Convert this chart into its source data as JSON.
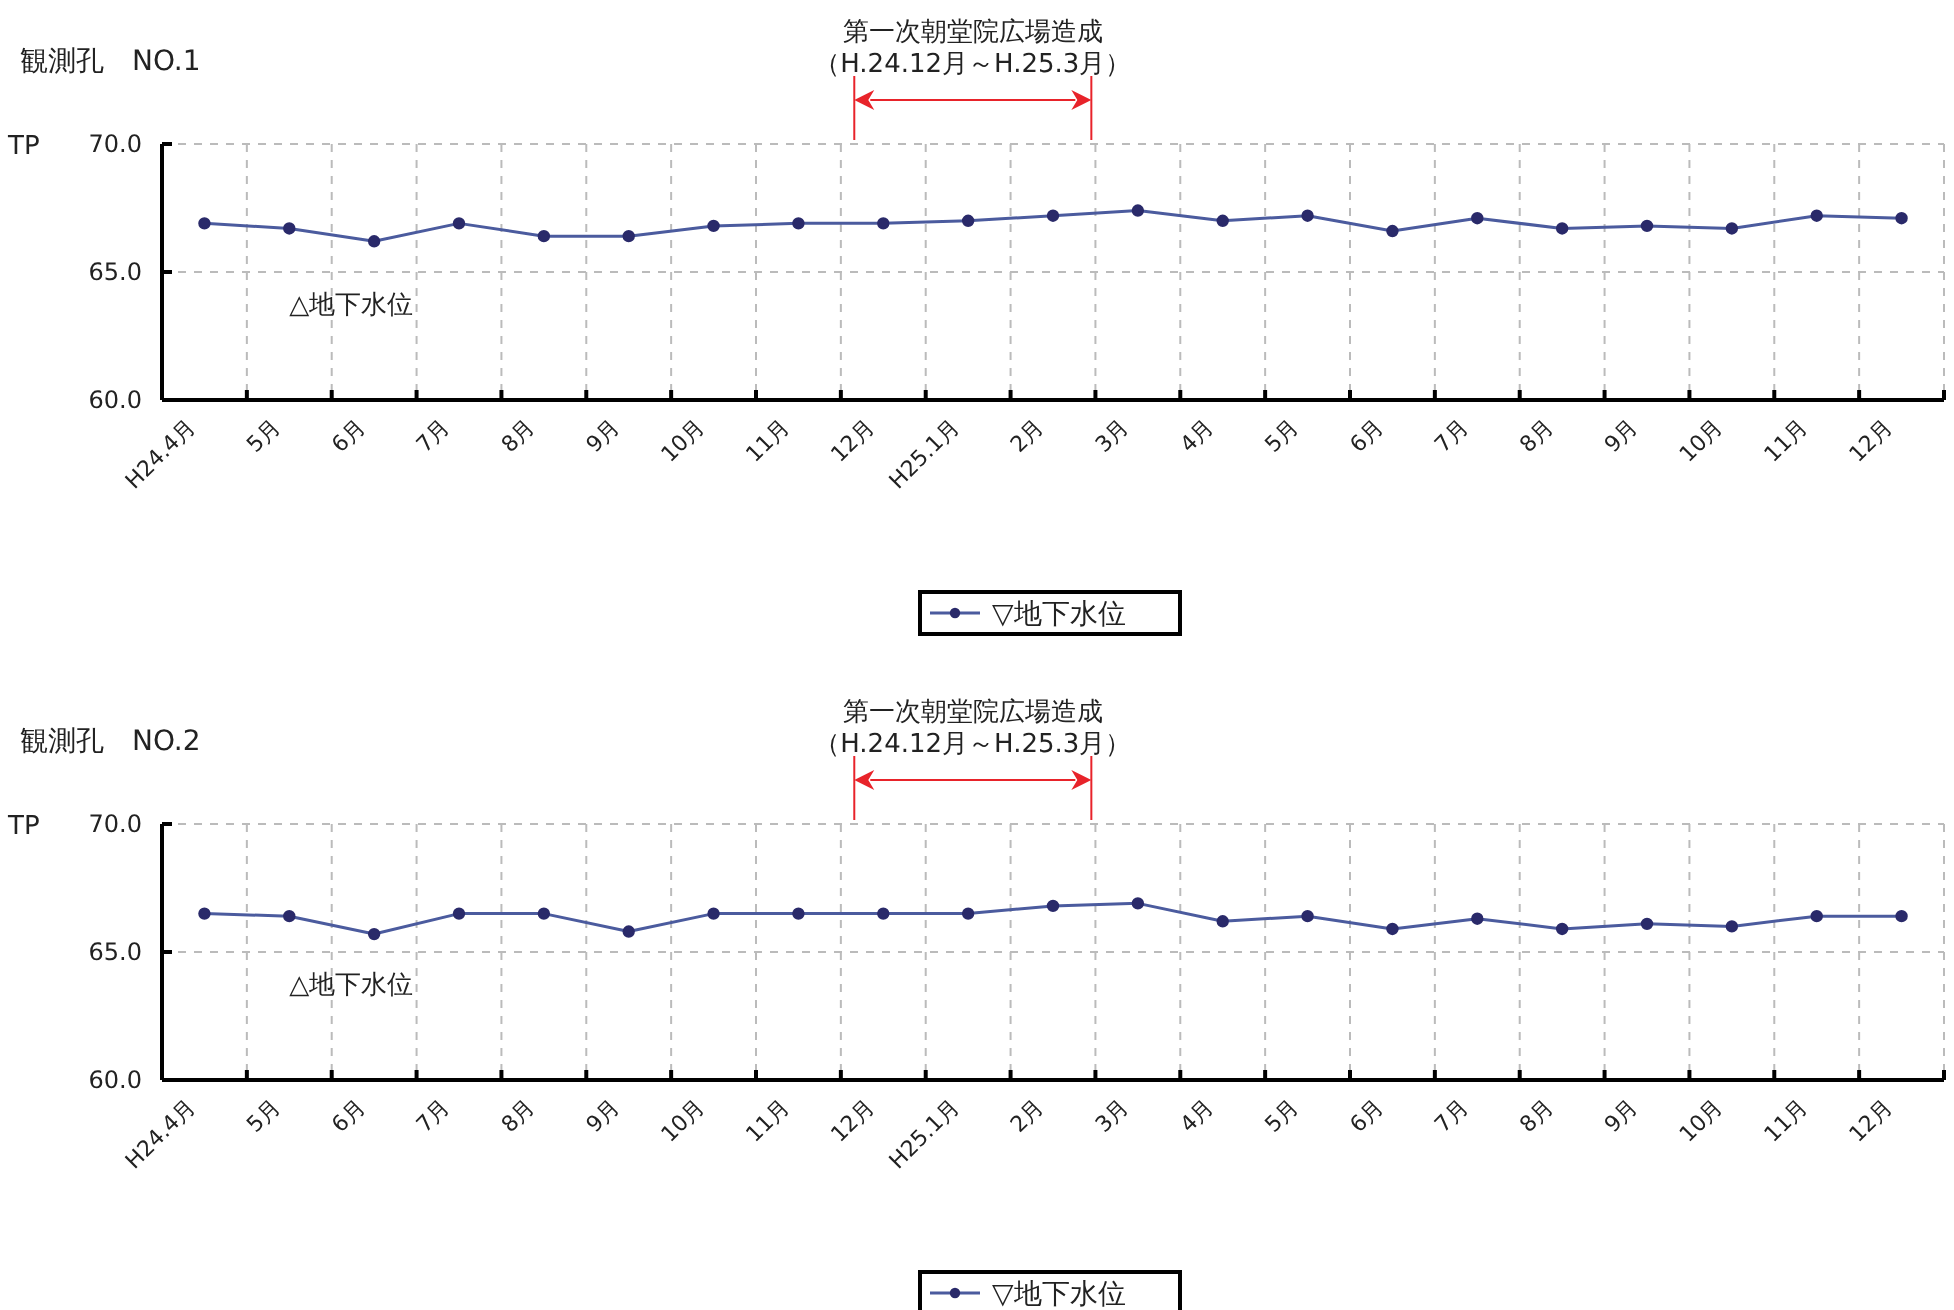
{
  "chart_data": [
    {
      "type": "line",
      "title": "観測孔　NO.1",
      "ylabel": "TP",
      "categories": [
        "H24.4月",
        "5月",
        "6月",
        "7月",
        "8月",
        "9月",
        "10月",
        "11月",
        "12月",
        "H25.1月",
        "2月",
        "3月",
        "4月",
        "5月",
        "6月",
        "7月",
        "8月",
        "9月",
        "10月",
        "11月",
        "12月"
      ],
      "series": [
        {
          "name": "▽地下水位",
          "color": "#4b5b9e",
          "values": [
            66.9,
            66.7,
            66.2,
            66.9,
            66.4,
            66.4,
            66.8,
            66.9,
            66.9,
            67.0,
            67.2,
            67.4,
            67.0,
            67.2,
            66.6,
            67.1,
            66.7,
            66.8,
            66.7,
            67.2,
            67.1
          ]
        }
      ],
      "ylim": [
        60,
        70
      ],
      "yticks": [
        {
          "value": 60,
          "label": "60.0"
        },
        {
          "value": 65,
          "label": "65.0"
        },
        {
          "value": 70,
          "label": "70.0"
        }
      ],
      "annotations": [
        "第一次朝堂院広場造成",
        "（H.24.12月～H.25.3月）",
        "△地下水位"
      ],
      "grid": true,
      "legend": "bottom",
      "marker": "circle",
      "line_style": "solid"
    },
    {
      "type": "line",
      "title": "観測孔　NO.2",
      "ylabel": "TP",
      "categories": [
        "H24.4月",
        "5月",
        "6月",
        "7月",
        "8月",
        "9月",
        "10月",
        "11月",
        "12月",
        "H25.1月",
        "2月",
        "3月",
        "4月",
        "5月",
        "6月",
        "7月",
        "8月",
        "9月",
        "10月",
        "11月",
        "12月"
      ],
      "series": [
        {
          "name": "▽地下水位",
          "color": "#4b5b9e",
          "values": [
            66.5,
            66.4,
            65.7,
            66.5,
            66.5,
            65.8,
            66.5,
            66.5,
            66.5,
            66.5,
            66.8,
            66.9,
            66.2,
            66.4,
            65.9,
            66.3,
            65.9,
            66.1,
            66.0,
            66.4,
            66.4
          ]
        }
      ],
      "ylim": [
        60,
        70
      ],
      "yticks": [
        {
          "value": 60,
          "label": "60.0"
        },
        {
          "value": 65,
          "label": "65.0"
        },
        {
          "value": 70,
          "label": "70.0"
        }
      ],
      "annotations": [
        "第一次朝堂院広場造成",
        "（H.24.12月～H.25.3月）",
        "△地下水位"
      ],
      "grid": true,
      "legend": "bottom",
      "marker": "circle",
      "line_style": "solid"
    }
  ]
}
